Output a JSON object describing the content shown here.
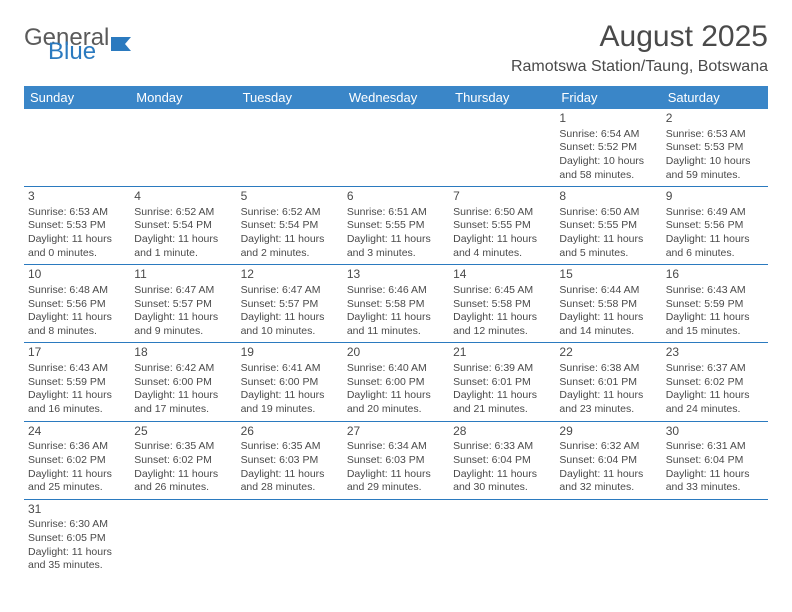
{
  "logo": {
    "text1": "General",
    "text2": "Blue"
  },
  "title": "August 2025",
  "subtitle": "Ramotswa Station/Taung, Botswana",
  "colors": {
    "header_bg": "#3a86c8",
    "header_text": "#ffffff",
    "cell_border": "#2b7abf",
    "text": "#4a4a4a",
    "logo_blue": "#2b7abf",
    "background": "#ffffff"
  },
  "typography": {
    "title_fontsize": 30,
    "subtitle_fontsize": 16,
    "header_fontsize": 13,
    "cell_fontsize": 10.5,
    "daynum_fontsize": 12
  },
  "day_headers": [
    "Sunday",
    "Monday",
    "Tuesday",
    "Wednesday",
    "Thursday",
    "Friday",
    "Saturday"
  ],
  "weeks": [
    [
      null,
      null,
      null,
      null,
      null,
      {
        "d": "1",
        "sr": "Sunrise: 6:54 AM",
        "ss": "Sunset: 5:52 PM",
        "dl": "Daylight: 10 hours and 58 minutes."
      },
      {
        "d": "2",
        "sr": "Sunrise: 6:53 AM",
        "ss": "Sunset: 5:53 PM",
        "dl": "Daylight: 10 hours and 59 minutes."
      }
    ],
    [
      {
        "d": "3",
        "sr": "Sunrise: 6:53 AM",
        "ss": "Sunset: 5:53 PM",
        "dl": "Daylight: 11 hours and 0 minutes."
      },
      {
        "d": "4",
        "sr": "Sunrise: 6:52 AM",
        "ss": "Sunset: 5:54 PM",
        "dl": "Daylight: 11 hours and 1 minute."
      },
      {
        "d": "5",
        "sr": "Sunrise: 6:52 AM",
        "ss": "Sunset: 5:54 PM",
        "dl": "Daylight: 11 hours and 2 minutes."
      },
      {
        "d": "6",
        "sr": "Sunrise: 6:51 AM",
        "ss": "Sunset: 5:55 PM",
        "dl": "Daylight: 11 hours and 3 minutes."
      },
      {
        "d": "7",
        "sr": "Sunrise: 6:50 AM",
        "ss": "Sunset: 5:55 PM",
        "dl": "Daylight: 11 hours and 4 minutes."
      },
      {
        "d": "8",
        "sr": "Sunrise: 6:50 AM",
        "ss": "Sunset: 5:55 PM",
        "dl": "Daylight: 11 hours and 5 minutes."
      },
      {
        "d": "9",
        "sr": "Sunrise: 6:49 AM",
        "ss": "Sunset: 5:56 PM",
        "dl": "Daylight: 11 hours and 6 minutes."
      }
    ],
    [
      {
        "d": "10",
        "sr": "Sunrise: 6:48 AM",
        "ss": "Sunset: 5:56 PM",
        "dl": "Daylight: 11 hours and 8 minutes."
      },
      {
        "d": "11",
        "sr": "Sunrise: 6:47 AM",
        "ss": "Sunset: 5:57 PM",
        "dl": "Daylight: 11 hours and 9 minutes."
      },
      {
        "d": "12",
        "sr": "Sunrise: 6:47 AM",
        "ss": "Sunset: 5:57 PM",
        "dl": "Daylight: 11 hours and 10 minutes."
      },
      {
        "d": "13",
        "sr": "Sunrise: 6:46 AM",
        "ss": "Sunset: 5:58 PM",
        "dl": "Daylight: 11 hours and 11 minutes."
      },
      {
        "d": "14",
        "sr": "Sunrise: 6:45 AM",
        "ss": "Sunset: 5:58 PM",
        "dl": "Daylight: 11 hours and 12 minutes."
      },
      {
        "d": "15",
        "sr": "Sunrise: 6:44 AM",
        "ss": "Sunset: 5:58 PM",
        "dl": "Daylight: 11 hours and 14 minutes."
      },
      {
        "d": "16",
        "sr": "Sunrise: 6:43 AM",
        "ss": "Sunset: 5:59 PM",
        "dl": "Daylight: 11 hours and 15 minutes."
      }
    ],
    [
      {
        "d": "17",
        "sr": "Sunrise: 6:43 AM",
        "ss": "Sunset: 5:59 PM",
        "dl": "Daylight: 11 hours and 16 minutes."
      },
      {
        "d": "18",
        "sr": "Sunrise: 6:42 AM",
        "ss": "Sunset: 6:00 PM",
        "dl": "Daylight: 11 hours and 17 minutes."
      },
      {
        "d": "19",
        "sr": "Sunrise: 6:41 AM",
        "ss": "Sunset: 6:00 PM",
        "dl": "Daylight: 11 hours and 19 minutes."
      },
      {
        "d": "20",
        "sr": "Sunrise: 6:40 AM",
        "ss": "Sunset: 6:00 PM",
        "dl": "Daylight: 11 hours and 20 minutes."
      },
      {
        "d": "21",
        "sr": "Sunrise: 6:39 AM",
        "ss": "Sunset: 6:01 PM",
        "dl": "Daylight: 11 hours and 21 minutes."
      },
      {
        "d": "22",
        "sr": "Sunrise: 6:38 AM",
        "ss": "Sunset: 6:01 PM",
        "dl": "Daylight: 11 hours and 23 minutes."
      },
      {
        "d": "23",
        "sr": "Sunrise: 6:37 AM",
        "ss": "Sunset: 6:02 PM",
        "dl": "Daylight: 11 hours and 24 minutes."
      }
    ],
    [
      {
        "d": "24",
        "sr": "Sunrise: 6:36 AM",
        "ss": "Sunset: 6:02 PM",
        "dl": "Daylight: 11 hours and 25 minutes."
      },
      {
        "d": "25",
        "sr": "Sunrise: 6:35 AM",
        "ss": "Sunset: 6:02 PM",
        "dl": "Daylight: 11 hours and 26 minutes."
      },
      {
        "d": "26",
        "sr": "Sunrise: 6:35 AM",
        "ss": "Sunset: 6:03 PM",
        "dl": "Daylight: 11 hours and 28 minutes."
      },
      {
        "d": "27",
        "sr": "Sunrise: 6:34 AM",
        "ss": "Sunset: 6:03 PM",
        "dl": "Daylight: 11 hours and 29 minutes."
      },
      {
        "d": "28",
        "sr": "Sunrise: 6:33 AM",
        "ss": "Sunset: 6:04 PM",
        "dl": "Daylight: 11 hours and 30 minutes."
      },
      {
        "d": "29",
        "sr": "Sunrise: 6:32 AM",
        "ss": "Sunset: 6:04 PM",
        "dl": "Daylight: 11 hours and 32 minutes."
      },
      {
        "d": "30",
        "sr": "Sunrise: 6:31 AM",
        "ss": "Sunset: 6:04 PM",
        "dl": "Daylight: 11 hours and 33 minutes."
      }
    ],
    [
      {
        "d": "31",
        "sr": "Sunrise: 6:30 AM",
        "ss": "Sunset: 6:05 PM",
        "dl": "Daylight: 11 hours and 35 minutes."
      },
      null,
      null,
      null,
      null,
      null,
      null
    ]
  ]
}
